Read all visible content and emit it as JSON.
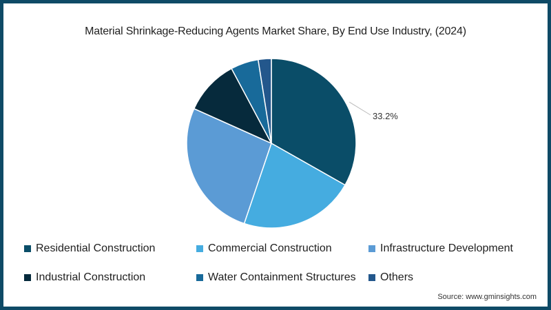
{
  "chart_data": {
    "type": "pie",
    "title": "Material Shrinkage-Reducing Agents Market Share, By End Use Industry, (2024)",
    "categories": [
      "Residential Construction",
      "Commercial Construction",
      "Infrastructure Development",
      "Industrial Construction",
      "Water Containment Structures",
      "Others"
    ],
    "values": [
      33.2,
      22.0,
      26.5,
      10.5,
      5.3,
      2.5
    ],
    "colors": [
      "#0a4d68",
      "#45ace0",
      "#5b9bd5",
      "#062a3c",
      "#186a9a",
      "#23578c"
    ],
    "annotations": [
      {
        "category": "Residential Construction",
        "text": "33.2%"
      }
    ],
    "legend_position": "bottom"
  },
  "title": "Material Shrinkage-Reducing Agents Market Share, By End Use Industry, (2024)",
  "legend": [
    {
      "label": "Residential Construction",
      "color": "#0a4d68"
    },
    {
      "label": "Commercial Construction",
      "color": "#45ace0"
    },
    {
      "label": "Infrastructure Development",
      "color": "#5b9bd5"
    },
    {
      "label": "Industrial Construction",
      "color": "#062a3c"
    },
    {
      "label": "Water Containment Structures",
      "color": "#186a9a"
    },
    {
      "label": "Others",
      "color": "#23578c"
    }
  ],
  "slice_label": "33.2%",
  "source": "Source: www.gminsights.com"
}
